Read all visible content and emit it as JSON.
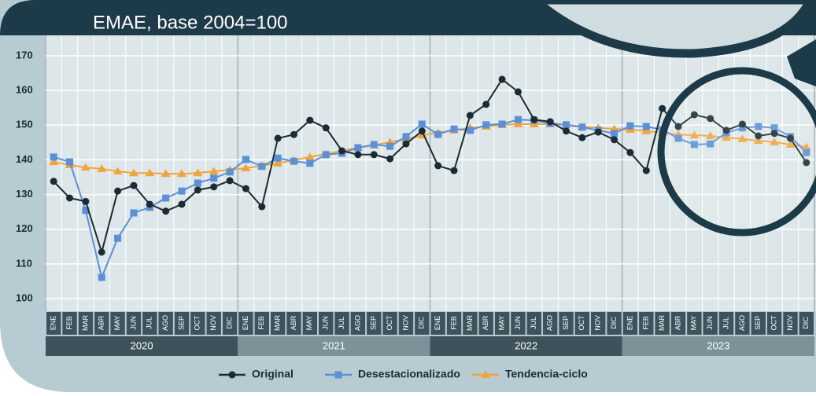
{
  "chart_data": {
    "type": "line",
    "title": "EMAE, base 2004=100",
    "categories": [
      "ENE",
      "FEB",
      "MAR",
      "ABR",
      "MAY",
      "JUN",
      "JUL",
      "AGO",
      "SEP",
      "OCT",
      "NOV",
      "DIC",
      "ENE",
      "FEB",
      "MAR",
      "ABR",
      "MAY",
      "JUN",
      "JUL",
      "AGO",
      "SEP",
      "OCT",
      "NOV",
      "DIC",
      "ENE",
      "FEB",
      "MAR",
      "ABR",
      "MAY",
      "JUN",
      "JUL",
      "AGO",
      "SEP",
      "OCT",
      "NOV",
      "DIC",
      "ENE",
      "FEB",
      "MAR",
      "ABR",
      "MAY",
      "JUN",
      "JUL",
      "AGO",
      "SEP",
      "OCT",
      "NOV",
      "DIC"
    ],
    "years": [
      "2020",
      "2021",
      "2022",
      "2023"
    ],
    "series": [
      {
        "name": "Original",
        "color": "#1b2a33",
        "marker": "circle",
        "values": [
          133.8,
          129,
          128,
          113.4,
          131,
          132.6,
          127.2,
          125.2,
          127.2,
          131.3,
          132.2,
          134,
          131.7,
          126.5,
          146.2,
          147.3,
          151.4,
          149.2,
          142.6,
          141.5,
          141.5,
          140.3,
          144.6,
          148.3,
          138.3,
          136.9,
          152.8,
          156,
          163.2,
          159.6,
          151.6,
          151,
          148.3,
          146.4,
          148,
          145.8,
          142.1,
          136.9,
          154.8,
          149.6,
          153,
          151.9,
          148.5,
          150.3,
          146.9,
          147.6,
          146.2,
          139.2
        ]
      },
      {
        "name": "Desestacionalizado",
        "color": "#5b8fd6",
        "marker": "square",
        "values": [
          140.8,
          139.4,
          125.4,
          106.1,
          117.4,
          124.7,
          126.3,
          129,
          131,
          133.3,
          134.7,
          136.5,
          140.1,
          138.1,
          140.5,
          139.6,
          139,
          141.5,
          141.9,
          143.5,
          144.4,
          143.9,
          146.7,
          150.3,
          147.3,
          148.9,
          148.5,
          150.1,
          150.3,
          151.6,
          151.4,
          150.5,
          150.1,
          149.4,
          148.5,
          147.6,
          149.8,
          149.6,
          148.7,
          146.2,
          144.4,
          144.6,
          147.8,
          149.2,
          149.6,
          149.2,
          146.7,
          142.1
        ]
      },
      {
        "name": "Tendencia-ciclo",
        "color": "#f0a43c",
        "marker": "triangle",
        "values": [
          139.4,
          138.5,
          137.8,
          137.4,
          136.7,
          136.2,
          136.2,
          136,
          136,
          136.2,
          136.7,
          137.1,
          137.6,
          138.3,
          139,
          139.9,
          140.8,
          141.7,
          142.6,
          143.5,
          144.2,
          145.1,
          146,
          147.1,
          147.8,
          148.5,
          149.2,
          149.6,
          150.1,
          150.3,
          150.3,
          150.3,
          150.1,
          149.6,
          149.2,
          148.9,
          148.7,
          148.3,
          147.8,
          147.3,
          147.1,
          146.9,
          146.4,
          146,
          145.5,
          145.1,
          144.4,
          143.7
        ]
      }
    ],
    "ylim": [
      96,
      174
    ],
    "yticks": [
      100,
      110,
      120,
      130,
      140,
      150,
      160,
      170
    ],
    "grid": true,
    "legend": "bottom"
  }
}
